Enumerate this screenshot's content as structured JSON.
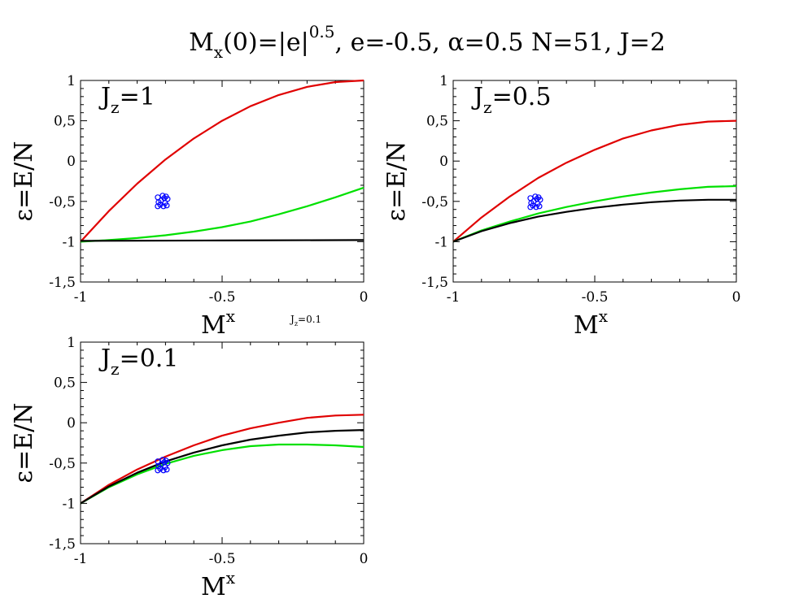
{
  "title": {
    "prefix": "M",
    "sub": "x",
    "middle": "(0)=|e|",
    "sup": "0.5",
    "suffix": ", e=-0.5, α=0.5 N=51, J=2"
  },
  "stray_label": {
    "main": "J",
    "sub": "z",
    "rest": "=0.1"
  },
  "colors": {
    "red": "#e00000",
    "green": "#00e000",
    "black": "#000000",
    "blue": "#0000ff"
  },
  "chart_data": [
    {
      "type": "line",
      "panel_label": {
        "main": "J",
        "sub": "z",
        "rest": "=1"
      },
      "xlabel": {
        "main": "M",
        "sup": "x"
      },
      "ylabel": "ε=E/N",
      "xlim": [
        -1,
        0
      ],
      "ylim": [
        -1.5,
        1
      ],
      "xticks": [
        -1,
        -0.5,
        0
      ],
      "xtick_labels": [
        "-1",
        "-0.5",
        "0"
      ],
      "yticks": [
        -1.5,
        -1,
        -0.5,
        0,
        0.5,
        1
      ],
      "ytick_labels": [
        "-1,5",
        "-1",
        "-0,5",
        "0",
        "0,5",
        "1"
      ],
      "series": [
        {
          "color": "red",
          "x": [
            -1,
            -0.9,
            -0.8,
            -0.7,
            -0.6,
            -0.5,
            -0.4,
            -0.3,
            -0.2,
            -0.1,
            0
          ],
          "y": [
            -1,
            -0.62,
            -0.28,
            0.02,
            0.28,
            0.5,
            0.68,
            0.82,
            0.92,
            0.98,
            1
          ]
        },
        {
          "color": "green",
          "x": [
            -1,
            -0.9,
            -0.8,
            -0.7,
            -0.6,
            -0.5,
            -0.4,
            -0.3,
            -0.2,
            -0.1,
            0
          ],
          "y": [
            -1,
            -0.98,
            -0.955,
            -0.92,
            -0.875,
            -0.82,
            -0.75,
            -0.66,
            -0.56,
            -0.45,
            -0.33
          ]
        },
        {
          "color": "black",
          "x": [
            -1,
            -0.5,
            0
          ],
          "y": [
            -0.99,
            -0.985,
            -0.98
          ]
        }
      ],
      "cluster": {
        "color": "blue",
        "x": -0.71,
        "y": -0.49
      }
    },
    {
      "type": "line",
      "panel_label": {
        "main": "J",
        "sub": "z",
        "rest": "=0.5"
      },
      "xlabel": {
        "main": "M",
        "sup": "x"
      },
      "ylabel": "ε=E/N",
      "xlim": [
        -1,
        0
      ],
      "ylim": [
        -1.5,
        1
      ],
      "xticks": [
        -1,
        -0.5,
        0
      ],
      "xtick_labels": [
        "-1",
        "-0.5",
        "0"
      ],
      "yticks": [
        -1.5,
        -1,
        -0.5,
        0,
        0.5,
        1
      ],
      "ytick_labels": [
        "-1,5",
        "-1",
        "-0,5",
        "0",
        "0,5",
        "1"
      ],
      "series": [
        {
          "color": "red",
          "x": [
            -1,
            -0.9,
            -0.8,
            -0.7,
            -0.6,
            -0.5,
            -0.4,
            -0.3,
            -0.2,
            -0.1,
            0
          ],
          "y": [
            -1,
            -0.7,
            -0.44,
            -0.21,
            -0.02,
            0.14,
            0.28,
            0.38,
            0.45,
            0.49,
            0.5
          ]
        },
        {
          "color": "green",
          "x": [
            -1,
            -0.9,
            -0.8,
            -0.7,
            -0.6,
            -0.5,
            -0.4,
            -0.3,
            -0.2,
            -0.1,
            0
          ],
          "y": [
            -1,
            -0.86,
            -0.75,
            -0.65,
            -0.57,
            -0.5,
            -0.44,
            -0.39,
            -0.35,
            -0.32,
            -0.31
          ]
        },
        {
          "color": "black",
          "x": [
            -1,
            -0.9,
            -0.8,
            -0.7,
            -0.6,
            -0.5,
            -0.4,
            -0.3,
            -0.2,
            -0.1,
            0
          ],
          "y": [
            -1,
            -0.87,
            -0.77,
            -0.69,
            -0.63,
            -0.58,
            -0.54,
            -0.51,
            -0.49,
            -0.48,
            -0.48
          ]
        }
      ],
      "cluster": {
        "color": "blue",
        "x": -0.71,
        "y": -0.5
      }
    },
    {
      "type": "line",
      "panel_label": {
        "main": "J",
        "sub": "z",
        "rest": "=0.1"
      },
      "xlabel": {
        "main": "M",
        "sup": "x"
      },
      "ylabel": "ε=E/N",
      "xlim": [
        -1,
        0
      ],
      "ylim": [
        -1.5,
        1
      ],
      "xticks": [
        -1,
        -0.5,
        0
      ],
      "xtick_labels": [
        "-1",
        "-0.5",
        "0"
      ],
      "yticks": [
        -1.5,
        -1,
        -0.5,
        0,
        0.5,
        1
      ],
      "ytick_labels": [
        "-1,5",
        "-1",
        "-0,5",
        "0",
        "0,5",
        "1"
      ],
      "series": [
        {
          "color": "red",
          "x": [
            -1,
            -0.9,
            -0.8,
            -0.7,
            -0.6,
            -0.5,
            -0.4,
            -0.3,
            -0.2,
            -0.1,
            0
          ],
          "y": [
            -1,
            -0.77,
            -0.58,
            -0.42,
            -0.28,
            -0.16,
            -0.07,
            0.0,
            0.06,
            0.09,
            0.1
          ]
        },
        {
          "color": "green",
          "x": [
            -1,
            -0.9,
            -0.8,
            -0.7,
            -0.6,
            -0.5,
            -0.4,
            -0.3,
            -0.2,
            -0.1,
            0
          ],
          "y": [
            -1,
            -0.8,
            -0.64,
            -0.51,
            -0.41,
            -0.34,
            -0.29,
            -0.27,
            -0.27,
            -0.28,
            -0.3
          ]
        },
        {
          "color": "black",
          "x": [
            -1,
            -0.9,
            -0.8,
            -0.7,
            -0.6,
            -0.5,
            -0.4,
            -0.3,
            -0.2,
            -0.1,
            0
          ],
          "y": [
            -1,
            -0.79,
            -0.62,
            -0.48,
            -0.37,
            -0.28,
            -0.21,
            -0.16,
            -0.12,
            -0.1,
            -0.09
          ]
        }
      ],
      "cluster": {
        "color": "blue",
        "x": -0.71,
        "y": -0.52
      }
    }
  ]
}
